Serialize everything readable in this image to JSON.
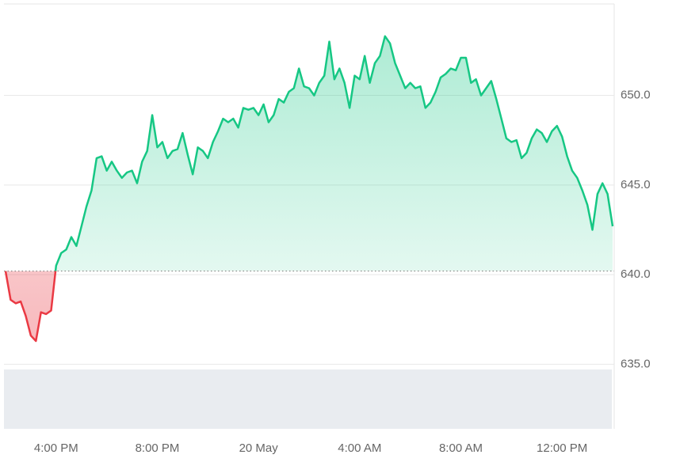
{
  "chart_data": {
    "type": "area-line",
    "x": [
      14,
      14.2,
      14.4,
      14.6,
      14.8,
      15,
      15.2,
      15.4,
      15.6,
      15.8,
      16,
      16.2,
      16.4,
      16.6,
      16.8,
      17,
      17.2,
      17.4,
      17.6,
      17.8,
      18,
      18.2,
      18.4,
      18.6,
      18.8,
      19,
      19.2,
      19.4,
      19.6,
      19.8,
      20,
      20.2,
      20.4,
      20.6,
      20.8,
      21,
      21.2,
      21.4,
      21.6,
      21.8,
      22,
      22.2,
      22.4,
      22.6,
      22.8,
      23,
      23.2,
      23.4,
      23.6,
      23.8,
      24,
      24.2,
      24.4,
      24.6,
      24.8,
      25,
      25.2,
      25.4,
      25.6,
      25.8,
      26,
      26.2,
      26.4,
      26.6,
      26.8,
      27,
      27.2,
      27.4,
      27.6,
      27.8,
      28,
      28.2,
      28.4,
      28.6,
      28.8,
      29,
      29.2,
      29.4,
      29.6,
      29.8,
      30,
      30.2,
      30.4,
      30.6,
      30.8,
      31,
      31.2,
      31.4,
      31.6,
      31.8,
      32,
      32.2,
      32.4,
      32.6,
      32.8,
      33,
      33.2,
      33.4,
      33.6,
      33.8,
      34,
      34.2,
      34.4,
      34.6,
      34.8,
      35,
      35.2,
      35.4,
      35.6,
      35.8,
      36,
      36.2,
      36.4,
      36.6,
      36.8,
      37,
      37.2,
      37.4,
      37.6,
      37.8,
      38
    ],
    "values": [
      640.2,
      638.6,
      638.4,
      638.5,
      637.7,
      636.6,
      636.3,
      637.9,
      637.8,
      638.0,
      640.5,
      641.2,
      641.4,
      642.1,
      641.6,
      642.7,
      643.8,
      644.7,
      646.5,
      646.6,
      645.8,
      646.3,
      645.8,
      645.4,
      645.7,
      645.8,
      645.1,
      646.3,
      646.9,
      648.9,
      647.1,
      647.4,
      646.5,
      646.9,
      647.0,
      647.9,
      646.7,
      645.6,
      647.1,
      646.9,
      646.5,
      647.4,
      648.0,
      648.7,
      648.5,
      648.7,
      648.2,
      649.3,
      649.2,
      649.3,
      648.9,
      649.5,
      648.5,
      648.9,
      649.8,
      649.6,
      650.2,
      650.4,
      651.5,
      650.5,
      650.4,
      650.0,
      650.7,
      651.1,
      653.0,
      650.9,
      651.5,
      650.7,
      649.3,
      651.1,
      650.9,
      652.2,
      650.7,
      651.8,
      652.2,
      653.3,
      652.9,
      651.8,
      651.1,
      650.4,
      650.7,
      650.4,
      650.5,
      649.3,
      649.6,
      650.2,
      651.0,
      651.2,
      651.5,
      651.4,
      652.1,
      652.1,
      650.7,
      650.9,
      650.0,
      650.4,
      650.8,
      649.8,
      648.7,
      647.6,
      647.4,
      647.5,
      646.5,
      646.8,
      647.6,
      648.1,
      647.9,
      647.4,
      648.0,
      648.3,
      647.7,
      646.6,
      645.8,
      645.4,
      644.7,
      643.9,
      642.5,
      644.5,
      645.1,
      644.5,
      642.7
    ],
    "baseline": 640.2,
    "up_color": "#16c784",
    "down_color": "#ea3943",
    "xlim": [
      14,
      38
    ],
    "xticks": [
      {
        "value": 16,
        "label": "4:00 PM"
      },
      {
        "value": 20,
        "label": "8:00 PM"
      },
      {
        "value": 24,
        "label": "20 May"
      },
      {
        "value": 28,
        "label": "4:00 AM"
      },
      {
        "value": 32,
        "label": "8:00 AM"
      },
      {
        "value": 36,
        "label": "12:00 PM"
      }
    ],
    "ylim": [
      631.4,
      655.1
    ],
    "yticks": [
      {
        "value": 635,
        "label": "635.0"
      },
      {
        "value": 640,
        "label": "640.0"
      },
      {
        "value": 645,
        "label": "645.0"
      },
      {
        "value": 650,
        "label": "650.0"
      }
    ],
    "grid": true
  }
}
